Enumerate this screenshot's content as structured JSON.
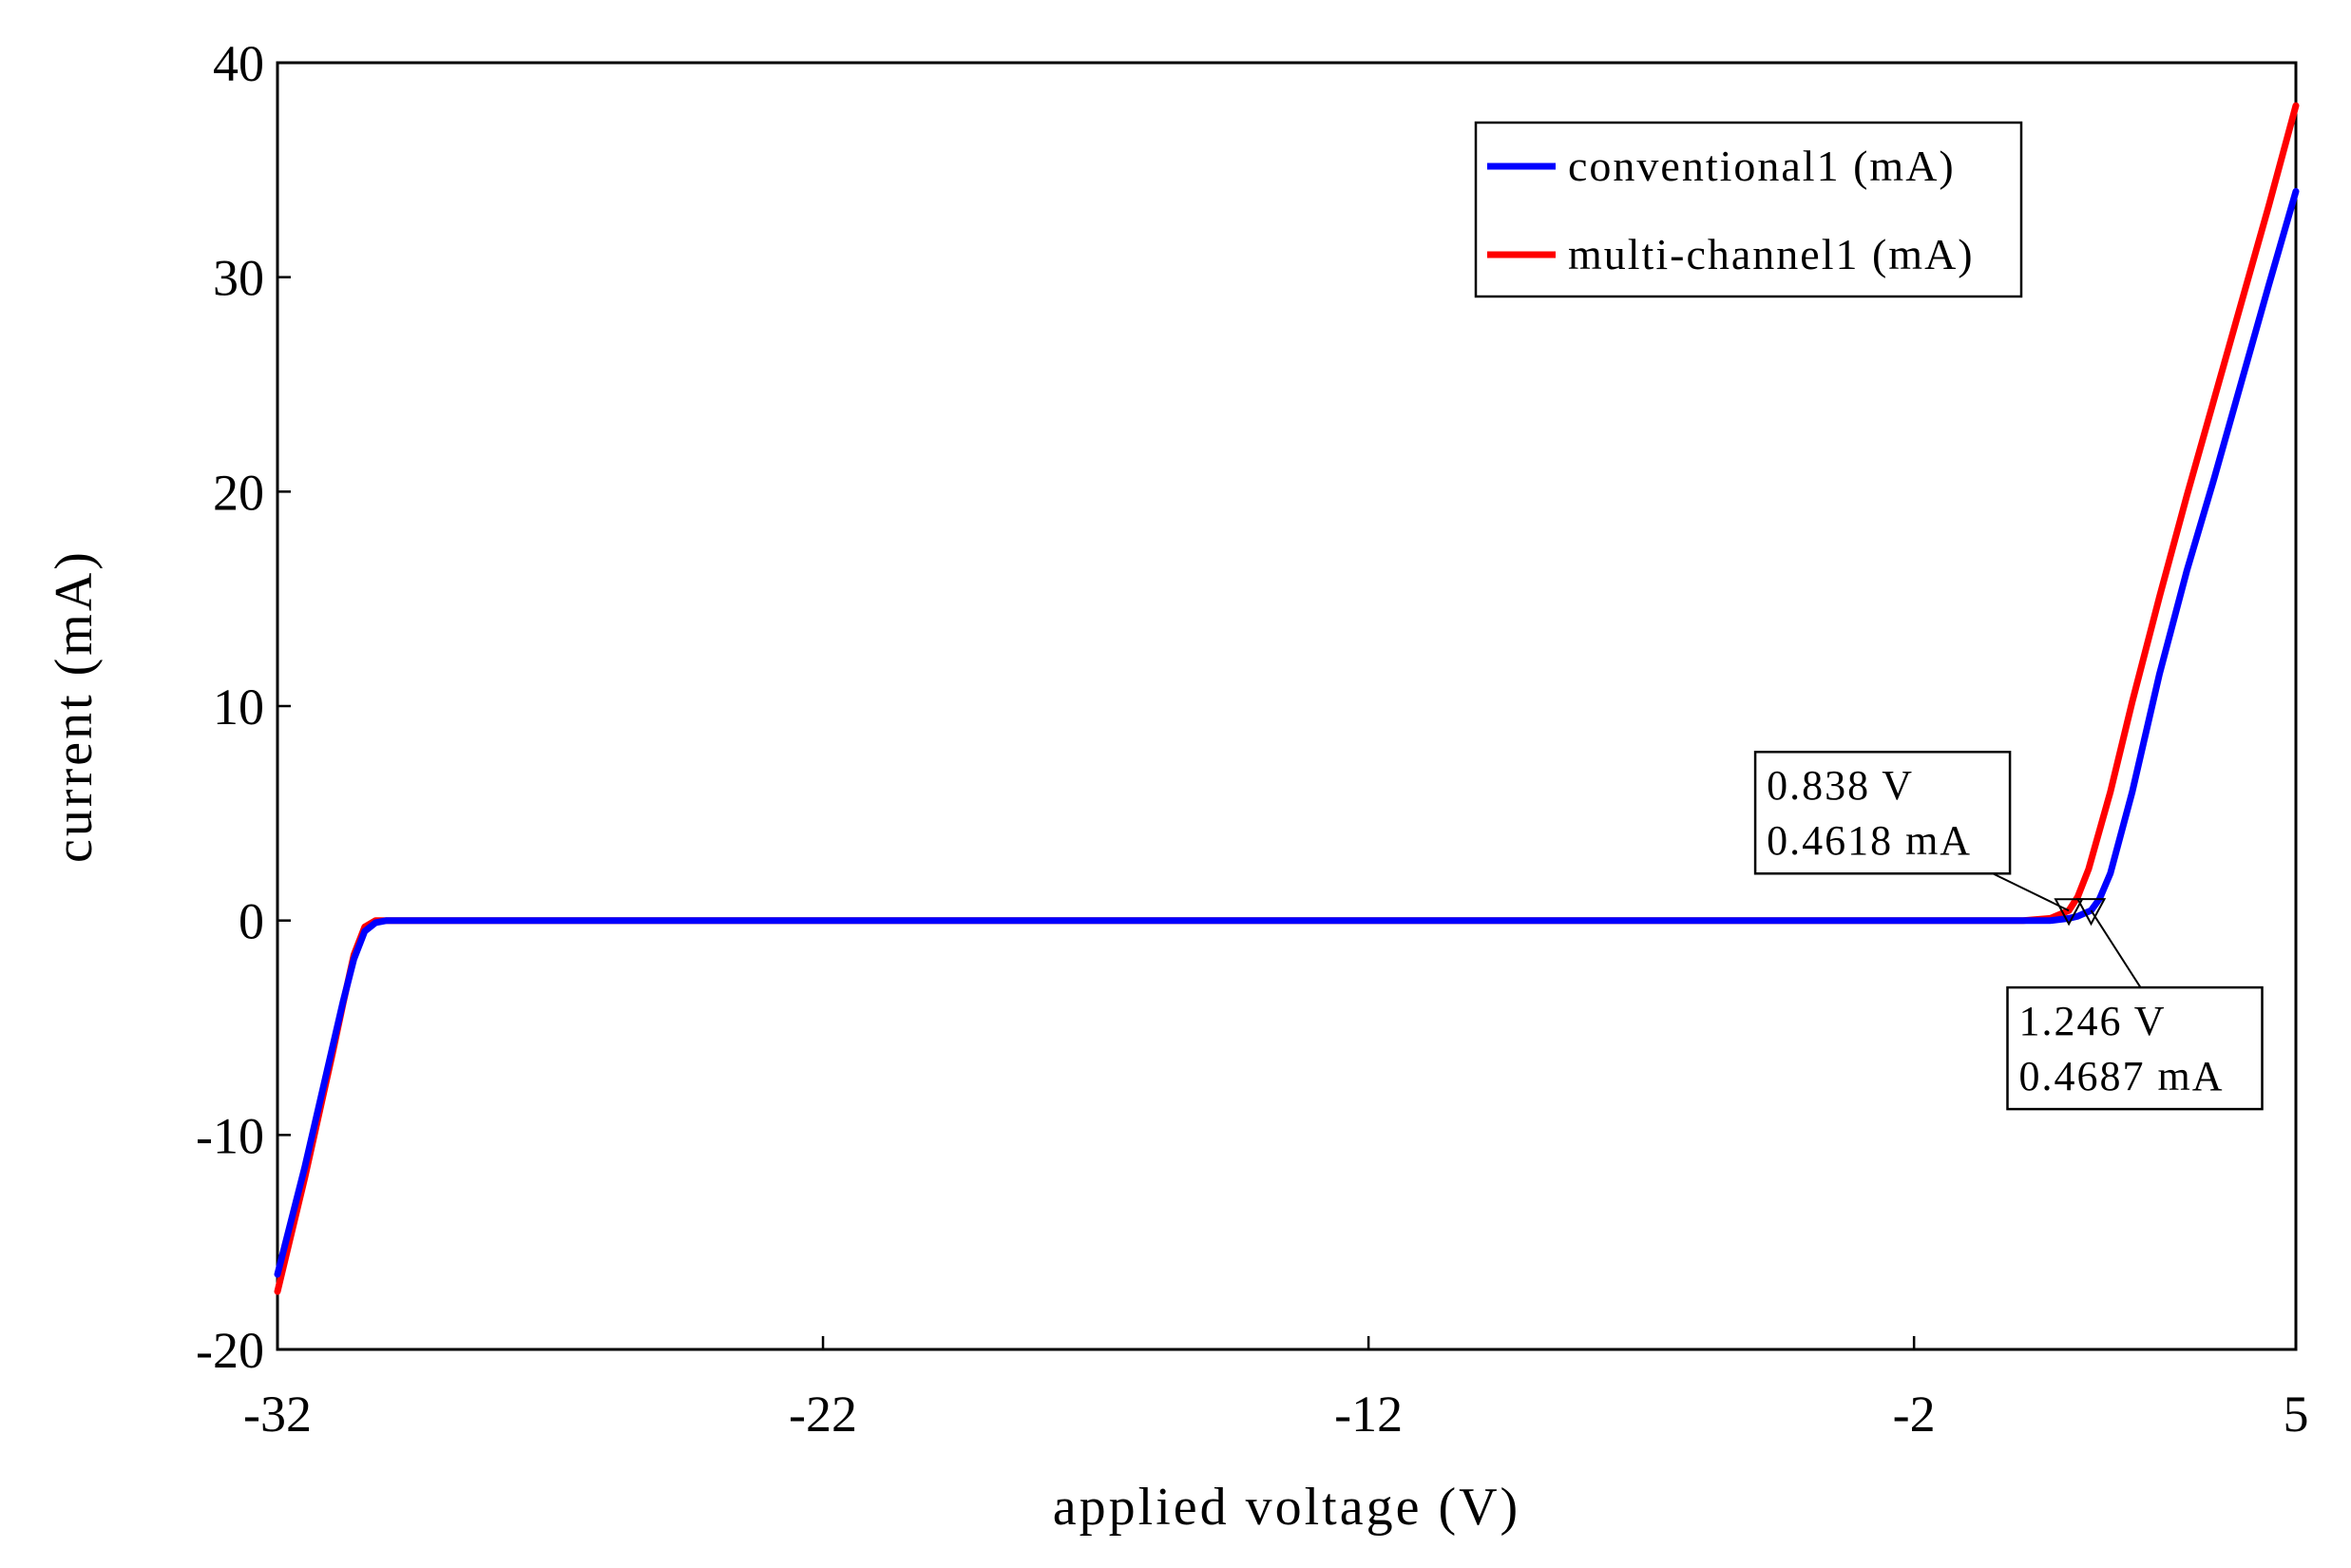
{
  "chart_data": {
    "type": "line",
    "title": "",
    "xlabel": "applied voltage (V)",
    "ylabel": "current (mA)",
    "xlim": [
      -32,
      5
    ],
    "ylim": [
      -20,
      40
    ],
    "xticks": [
      -32,
      -22,
      -12,
      -2,
      5
    ],
    "yticks": [
      40,
      30,
      20,
      10,
      0,
      -10,
      -20
    ],
    "grid": false,
    "legend_position": "top-right",
    "series": [
      {
        "name": "conventional1 (mA)",
        "color": "#0000ff",
        "x": [
          -32,
          -31.5,
          -31,
          -30.8,
          -30.6,
          -30.4,
          -30.2,
          -30,
          -29.5,
          -20,
          -10,
          0,
          0.5,
          0.838,
          1.0,
          1.246,
          1.4,
          1.6,
          2.0,
          2.5,
          3.0,
          3.5,
          4.0,
          4.5,
          5.0
        ],
        "y": [
          -16.5,
          -11.5,
          -6.0,
          -3.8,
          -1.8,
          -0.5,
          -0.1,
          0,
          0,
          0,
          0,
          0,
          0,
          0.1,
          0.2,
          0.4687,
          1.0,
          2.2,
          6.0,
          11.5,
          16.3,
          20.6,
          25.1,
          29.6,
          34.0
        ]
      },
      {
        "name": "multi-channel1 (mA)",
        "color": "#ff0000",
        "x": [
          -32,
          -31.5,
          -31,
          -30.8,
          -30.6,
          -30.4,
          -30.2,
          -30,
          -29.5,
          -20,
          -10,
          0,
          0.5,
          0.838,
          1.0,
          1.2,
          1.6,
          2.0,
          2.5,
          3.0,
          3.5,
          4.0,
          4.5,
          5.0
        ],
        "y": [
          -17.3,
          -12.0,
          -6.3,
          -3.9,
          -1.6,
          -0.3,
          0,
          0,
          0,
          0,
          0,
          0,
          0.1,
          0.4618,
          1.1,
          2.4,
          6.0,
          10.2,
          15.1,
          19.8,
          24.3,
          28.8,
          33.3,
          38.0
        ]
      }
    ],
    "annotations": [
      {
        "series": "multi-channel1 (mA)",
        "x": 0.838,
        "y": 0.4618,
        "line1": "0.838 V",
        "line2": "0.4618 mA",
        "box_position": "upper-left"
      },
      {
        "series": "conventional1 (mA)",
        "x": 1.246,
        "y": 0.4687,
        "line1": "1.246 V",
        "line2": "0.4687 mA",
        "box_position": "lower-right"
      }
    ]
  }
}
